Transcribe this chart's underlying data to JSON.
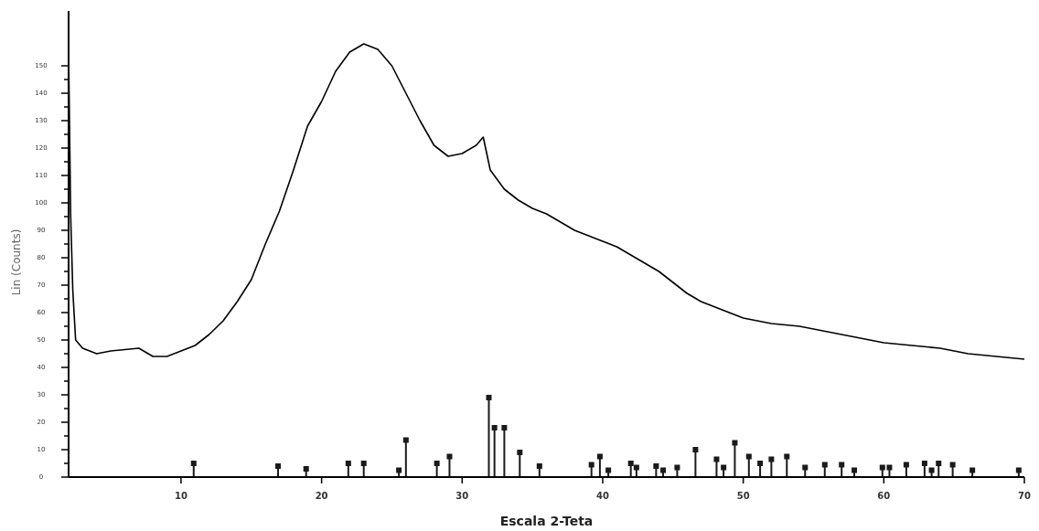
{
  "chart_data": {
    "type": "line",
    "xlabel": "Escala 2-Teta",
    "ylabel": "Lin (Counts)",
    "xlim": [
      2,
      70
    ],
    "xticks": [
      10,
      20,
      30,
      40,
      50,
      60,
      70
    ],
    "ylim": [
      0,
      170
    ],
    "yticks": [
      0,
      {
        "value": 5,
        "label": null
      },
      10,
      {
        "value": 15,
        "label": null
      },
      20,
      {
        "value": 25,
        "label": null
      },
      30,
      {
        "value": 35,
        "label": null
      },
      40,
      {
        "value": 45,
        "label": null
      },
      50,
      {
        "value": 55,
        "label": null
      },
      60,
      {
        "value": 65,
        "label": null
      },
      70,
      {
        "value": 75,
        "label": null
      },
      80,
      {
        "value": 85,
        "label": null
      },
      90,
      {
        "value": 95,
        "label": null
      },
      100,
      {
        "value": 105,
        "label": null
      },
      110,
      {
        "value": 115,
        "label": null
      },
      120,
      {
        "value": 125,
        "label": null
      },
      130,
      {
        "value": 135,
        "label": null
      },
      140,
      {
        "value": 145,
        "label": null
      },
      150
    ],
    "series": [
      {
        "color": "#000000",
        "x": [
          2.0,
          2.15,
          2.3,
          2.5,
          3,
          4,
          5,
          6,
          7,
          8,
          9,
          10,
          11,
          12,
          13,
          14,
          15,
          16,
          17,
          18,
          19,
          20,
          21,
          22,
          23,
          24,
          25,
          26,
          27,
          28,
          29,
          30,
          31,
          31.5,
          32,
          33,
          34,
          35,
          36,
          37,
          38,
          39,
          40,
          41,
          42,
          43,
          44,
          45,
          46,
          47,
          48,
          49,
          50,
          52,
          54,
          56,
          58,
          60,
          62,
          64,
          66,
          68,
          70
        ],
        "values": [
          155,
          95,
          68,
          50,
          47,
          45,
          46,
          46.5,
          47,
          44,
          44,
          46,
          48,
          52,
          57,
          64,
          72,
          85,
          97,
          112,
          128,
          137,
          148,
          155,
          158,
          156,
          150,
          140,
          130,
          121,
          117,
          118,
          121,
          124,
          112,
          105,
          101,
          98,
          96,
          93,
          90,
          88,
          86,
          84,
          81,
          78,
          75,
          71,
          67,
          64,
          62,
          60,
          58,
          56,
          55,
          53,
          51,
          49,
          48,
          47,
          45,
          44,
          43
        ]
      },
      {
        "type": "lollipop",
        "color": "#1a1a1a",
        "marker": "square",
        "x": [
          10.9,
          16.9,
          18.9,
          21.9,
          23.0,
          25.5,
          26.0,
          28.2,
          29.1,
          31.9,
          32.3,
          33.0,
          34.1,
          35.5,
          39.2,
          39.8,
          40.4,
          42.0,
          42.4,
          43.8,
          44.3,
          45.3,
          46.6,
          48.1,
          48.6,
          49.4,
          50.4,
          51.2,
          52.0,
          53.1,
          54.4,
          55.8,
          57.0,
          57.9,
          59.9,
          60.4,
          61.6,
          62.9,
          63.4,
          63.9,
          64.9,
          66.3,
          69.6
        ],
        "values": [
          5,
          4,
          3,
          5,
          5,
          2.5,
          13.5,
          5,
          7.5,
          29,
          18,
          18,
          9,
          4,
          4.5,
          7.5,
          2.5,
          5,
          3.5,
          4,
          2.5,
          3.5,
          10,
          6.5,
          3.5,
          12.5,
          7.5,
          5,
          6.5,
          7.5,
          3.5,
          4.5,
          4.5,
          2.5,
          3.5,
          3.5,
          4.5,
          5,
          2.5,
          5,
          4.5,
          2.5,
          2.5
        ]
      }
    ]
  }
}
